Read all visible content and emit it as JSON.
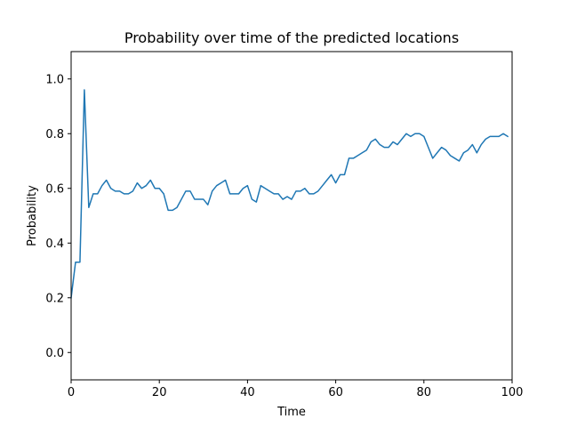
{
  "chart_data": {
    "type": "line",
    "title": "Probability over time of the predicted locations",
    "xlabel": "Time",
    "ylabel": "Probability",
    "xlim": [
      0,
      100
    ],
    "ylim": [
      -0.1,
      1.1
    ],
    "grid": false,
    "legend": "none",
    "x_ticks": [
      0,
      20,
      40,
      60,
      80,
      100
    ],
    "x_tick_labels": [
      "0",
      "20",
      "40",
      "60",
      "80",
      "100"
    ],
    "y_ticks": [
      0.0,
      0.2,
      0.4,
      0.6,
      0.8,
      1.0
    ],
    "y_tick_labels": [
      "0.0",
      "0.2",
      "0.4",
      "0.6",
      "0.8",
      "1.0"
    ],
    "series": [
      {
        "color": "#1f77b4",
        "x": [
          0,
          1,
          2,
          3,
          4,
          5,
          6,
          7,
          8,
          9,
          10,
          11,
          12,
          13,
          14,
          15,
          16,
          17,
          18,
          19,
          20,
          21,
          22,
          23,
          24,
          25,
          26,
          27,
          28,
          29,
          30,
          31,
          32,
          33,
          34,
          35,
          36,
          37,
          38,
          39,
          40,
          41,
          42,
          43,
          44,
          45,
          46,
          47,
          48,
          49,
          50,
          51,
          52,
          53,
          54,
          55,
          56,
          57,
          58,
          59,
          60,
          61,
          62,
          63,
          64,
          65,
          66,
          67,
          68,
          69,
          70,
          71,
          72,
          73,
          74,
          75,
          76,
          77,
          78,
          79,
          80,
          81,
          82,
          83,
          84,
          85,
          86,
          87,
          88,
          89,
          90,
          91,
          92,
          93,
          94,
          95,
          96,
          97,
          98,
          99
        ],
        "y": [
          0.2,
          0.33,
          0.33,
          0.96,
          0.53,
          0.58,
          0.58,
          0.61,
          0.63,
          0.6,
          0.59,
          0.59,
          0.58,
          0.58,
          0.59,
          0.62,
          0.6,
          0.61,
          0.63,
          0.6,
          0.6,
          0.58,
          0.52,
          0.52,
          0.53,
          0.56,
          0.59,
          0.59,
          0.56,
          0.56,
          0.56,
          0.54,
          0.59,
          0.61,
          0.62,
          0.63,
          0.58,
          0.58,
          0.58,
          0.6,
          0.61,
          0.56,
          0.55,
          0.61,
          0.6,
          0.59,
          0.58,
          0.58,
          0.56,
          0.57,
          0.56,
          0.59,
          0.59,
          0.6,
          0.58,
          0.58,
          0.59,
          0.61,
          0.63,
          0.65,
          0.62,
          0.65,
          0.65,
          0.71,
          0.71,
          0.72,
          0.73,
          0.74,
          0.77,
          0.78,
          0.76,
          0.75,
          0.75,
          0.77,
          0.76,
          0.78,
          0.8,
          0.79,
          0.8,
          0.8,
          0.79,
          0.75,
          0.71,
          0.73,
          0.75,
          0.74,
          0.72,
          0.71,
          0.7,
          0.73,
          0.74,
          0.76,
          0.73,
          0.76,
          0.78,
          0.79,
          0.79,
          0.79,
          0.8,
          0.79
        ]
      }
    ]
  }
}
